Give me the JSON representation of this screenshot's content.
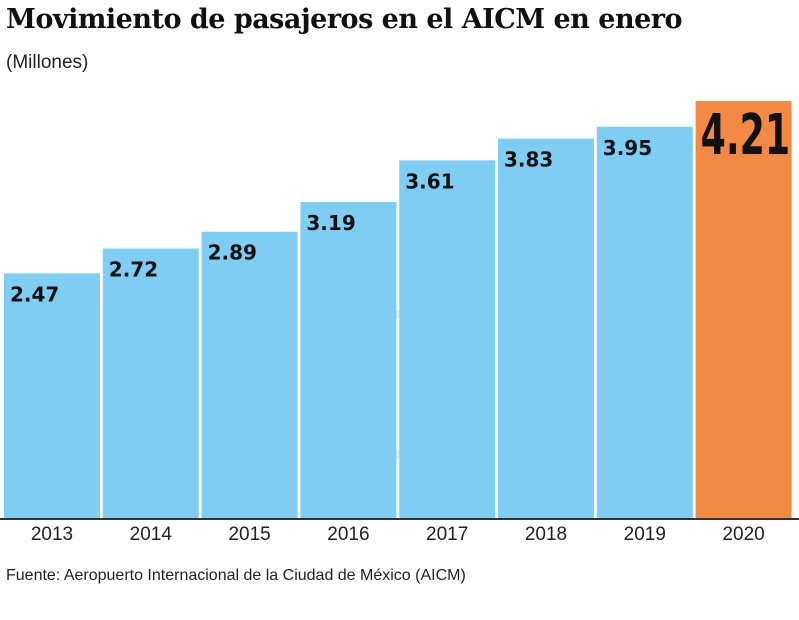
{
  "chart_data": {
    "type": "bar",
    "title": "Movimiento de pasajeros en el AICM en enero",
    "subtitle": "(Millones)",
    "source": "Fuente: Aeropuerto Internacional de la Ciudad de México (AICM)",
    "categories": [
      "2013",
      "2014",
      "2015",
      "2016",
      "2017",
      "2018",
      "2019",
      "2020"
    ],
    "values": [
      2.47,
      2.72,
      2.89,
      3.19,
      3.61,
      3.83,
      3.95,
      4.21
    ],
    "labels": [
      "2.47",
      "2.72",
      "2.89",
      "3.19",
      "3.61",
      "3.83",
      "3.95",
      "4.21"
    ],
    "ylim": [
      0,
      4.21
    ],
    "grid": false,
    "colors": {
      "bar": "#80cdf4",
      "highlight": "#f28a45",
      "highlight_category": "2020"
    }
  }
}
